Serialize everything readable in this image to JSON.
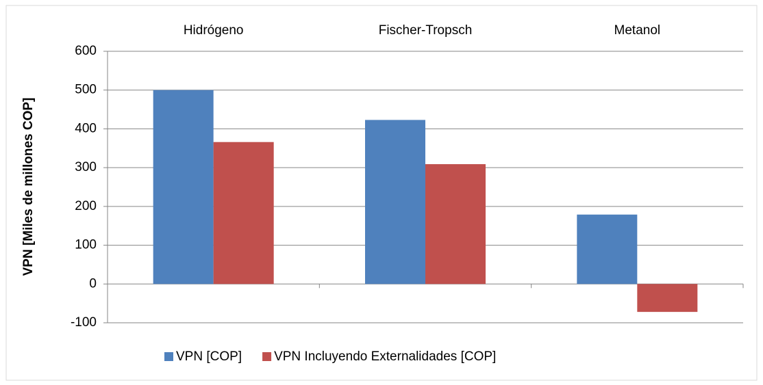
{
  "chart_data": {
    "type": "bar",
    "y_label": "VPN [Miles de millones COP]",
    "categories": [
      "Hidrógeno",
      "Fischer-Tropsch",
      "Metanol"
    ],
    "series": [
      {
        "name": "VPN [COP]",
        "color": "#4f81bd",
        "values": [
          500,
          423,
          179
        ]
      },
      {
        "name": "VPN Incluyendo Externalidades [COP]",
        "color": "#c0504d",
        "values": [
          366,
          309,
          -72
        ]
      }
    ],
    "ylim": [
      -100,
      600
    ],
    "yticks": [
      -100,
      0,
      100,
      200,
      300,
      400,
      500,
      600
    ],
    "grid": true
  }
}
